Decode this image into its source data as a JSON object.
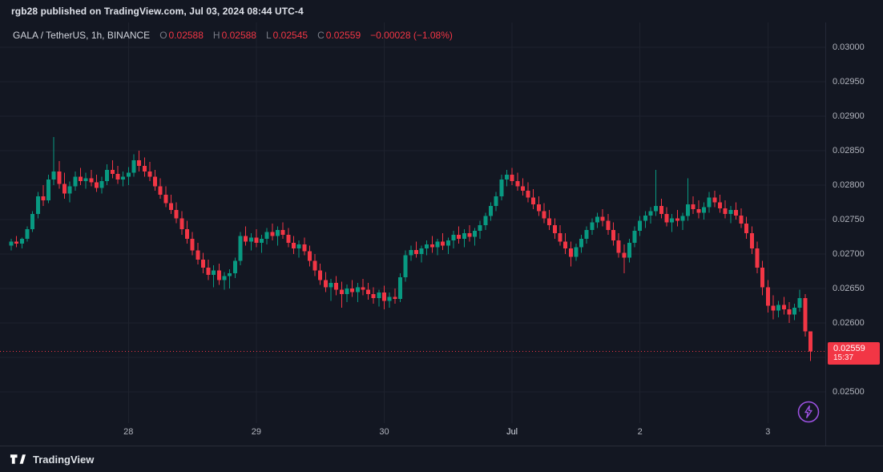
{
  "attribution": "rgb28 published on TradingView.com, Jul 03, 2024 08:44 UTC-4",
  "legend": {
    "symbol": "GALA / TetherUS, 1h, BINANCE",
    "o_label": "O",
    "o_value": "0.02588",
    "h_label": "H",
    "h_value": "0.02588",
    "l_label": "L",
    "l_value": "0.02545",
    "c_label": "C",
    "c_value": "0.02559",
    "change": "−0.00028 (−1.08%)"
  },
  "price_axis": {
    "last_price": "0.02559",
    "countdown": "15:37"
  },
  "footer": {
    "brand": "TradingView"
  },
  "colors": {
    "background": "#131722",
    "up": "#089981",
    "down": "#f23645",
    "grid": "#1e222d",
    "axis_text": "#b2b5be",
    "badge": "#f23645",
    "accent_purple": "#9b51e0"
  },
  "chart_data": {
    "type": "candlestick",
    "title": "GALA / TetherUS, 1h, BINANCE",
    "interval": "1h",
    "exchange": "BINANCE",
    "last": {
      "open": 0.02588,
      "high": 0.02588,
      "low": 0.02545,
      "close": 0.02559,
      "change": -0.00028,
      "change_pct": -1.08
    },
    "y_range": [
      0.025,
      0.03
    ],
    "y_ticks": [
      0.03,
      0.0295,
      0.029,
      0.0285,
      0.028,
      0.0275,
      0.027,
      0.0265,
      0.026,
      0.0255,
      0.025
    ],
    "x_labels": [
      {
        "label": "28",
        "index": 22,
        "major": false
      },
      {
        "label": "29",
        "index": 46,
        "major": false
      },
      {
        "label": "30",
        "index": 70,
        "major": false
      },
      {
        "label": "Jul",
        "index": 94,
        "major": true
      },
      {
        "label": "2",
        "index": 118,
        "major": false
      },
      {
        "label": "3",
        "index": 142,
        "major": false
      }
    ],
    "candles": [
      [
        0.02712,
        0.02722,
        0.02705,
        0.02718
      ],
      [
        0.02718,
        0.02726,
        0.0271,
        0.02715
      ],
      [
        0.02715,
        0.02724,
        0.02708,
        0.02722
      ],
      [
        0.02722,
        0.0274,
        0.02718,
        0.02736
      ],
      [
        0.02736,
        0.02762,
        0.02732,
        0.02758
      ],
      [
        0.02758,
        0.0279,
        0.02752,
        0.02784
      ],
      [
        0.02784,
        0.028,
        0.0277,
        0.02778
      ],
      [
        0.02778,
        0.02815,
        0.02774,
        0.02808
      ],
      [
        0.02808,
        0.0287,
        0.028,
        0.0282
      ],
      [
        0.0282,
        0.02835,
        0.02795,
        0.02802
      ],
      [
        0.02802,
        0.02818,
        0.0278,
        0.02788
      ],
      [
        0.02788,
        0.02805,
        0.02775,
        0.02798
      ],
      [
        0.02798,
        0.0282,
        0.02792,
        0.02812
      ],
      [
        0.02812,
        0.02825,
        0.028,
        0.02806
      ],
      [
        0.02806,
        0.02818,
        0.02795,
        0.0281
      ],
      [
        0.0281,
        0.02822,
        0.02798,
        0.02804
      ],
      [
        0.02804,
        0.02815,
        0.0279,
        0.02796
      ],
      [
        0.02796,
        0.02812,
        0.02788,
        0.02806
      ],
      [
        0.02806,
        0.0283,
        0.028,
        0.02822
      ],
      [
        0.02822,
        0.02836,
        0.0281,
        0.02816
      ],
      [
        0.02816,
        0.02828,
        0.02802,
        0.02808
      ],
      [
        0.02808,
        0.0282,
        0.02798,
        0.02812
      ],
      [
        0.02812,
        0.02826,
        0.028,
        0.02818
      ],
      [
        0.02818,
        0.02845,
        0.02812,
        0.02836
      ],
      [
        0.02836,
        0.0285,
        0.0282,
        0.02828
      ],
      [
        0.02828,
        0.0284,
        0.02812,
        0.0282
      ],
      [
        0.0282,
        0.02834,
        0.02806,
        0.02812
      ],
      [
        0.02812,
        0.02822,
        0.02792,
        0.02798
      ],
      [
        0.02798,
        0.0281,
        0.0278,
        0.02786
      ],
      [
        0.02786,
        0.02798,
        0.02768,
        0.02774
      ],
      [
        0.02774,
        0.02786,
        0.02758,
        0.02764
      ],
      [
        0.02764,
        0.02775,
        0.02745,
        0.02752
      ],
      [
        0.02752,
        0.02762,
        0.02728,
        0.02736
      ],
      [
        0.02736,
        0.02748,
        0.02715,
        0.02722
      ],
      [
        0.02722,
        0.02732,
        0.02698,
        0.02705
      ],
      [
        0.02705,
        0.02716,
        0.02685,
        0.02692
      ],
      [
        0.02692,
        0.02702,
        0.02672,
        0.0268
      ],
      [
        0.0268,
        0.02692,
        0.02662,
        0.0267
      ],
      [
        0.0267,
        0.02684,
        0.02652,
        0.02676
      ],
      [
        0.02676,
        0.02686,
        0.02655,
        0.02662
      ],
      [
        0.02662,
        0.02674,
        0.02648,
        0.02668
      ],
      [
        0.02668,
        0.02678,
        0.0265,
        0.02672
      ],
      [
        0.02672,
        0.02695,
        0.02665,
        0.0269
      ],
      [
        0.0269,
        0.02732,
        0.02684,
        0.02726
      ],
      [
        0.02726,
        0.0274,
        0.02712,
        0.02718
      ],
      [
        0.02718,
        0.0273,
        0.02705,
        0.02724
      ],
      [
        0.02724,
        0.02736,
        0.0271,
        0.02716
      ],
      [
        0.02716,
        0.02728,
        0.02702,
        0.02722
      ],
      [
        0.02722,
        0.02738,
        0.02714,
        0.02732
      ],
      [
        0.02732,
        0.02744,
        0.0272,
        0.02726
      ],
      [
        0.02726,
        0.0274,
        0.02712,
        0.02735
      ],
      [
        0.02735,
        0.02746,
        0.02722,
        0.02728
      ],
      [
        0.02728,
        0.02738,
        0.0271,
        0.02716
      ],
      [
        0.02716,
        0.02726,
        0.027,
        0.02708
      ],
      [
        0.02708,
        0.0272,
        0.02695,
        0.02714
      ],
      [
        0.02714,
        0.02724,
        0.02698,
        0.02704
      ],
      [
        0.02704,
        0.02712,
        0.02682,
        0.0269
      ],
      [
        0.0269,
        0.027,
        0.02668,
        0.02676
      ],
      [
        0.02676,
        0.02686,
        0.02655,
        0.02662
      ],
      [
        0.02662,
        0.02674,
        0.02645,
        0.02652
      ],
      [
        0.02652,
        0.02664,
        0.02632,
        0.02658
      ],
      [
        0.02658,
        0.02668,
        0.0264,
        0.02648
      ],
      [
        0.02648,
        0.0266,
        0.02622,
        0.02642
      ],
      [
        0.02642,
        0.02656,
        0.0263,
        0.0265
      ],
      [
        0.0265,
        0.02662,
        0.02638,
        0.02645
      ],
      [
        0.02645,
        0.02658,
        0.0263,
        0.02652
      ],
      [
        0.02652,
        0.02664,
        0.0264,
        0.02648
      ],
      [
        0.02648,
        0.02658,
        0.02634,
        0.02642
      ],
      [
        0.02642,
        0.02652,
        0.02628,
        0.02636
      ],
      [
        0.02636,
        0.02648,
        0.02624,
        0.02644
      ],
      [
        0.02644,
        0.02654,
        0.0262,
        0.02632
      ],
      [
        0.02632,
        0.02644,
        0.02622,
        0.02638
      ],
      [
        0.02638,
        0.0265,
        0.02628,
        0.02635
      ],
      [
        0.02635,
        0.02672,
        0.0263,
        0.02666
      ],
      [
        0.02666,
        0.02705,
        0.0266,
        0.02698
      ],
      [
        0.02698,
        0.02712,
        0.0269,
        0.02706
      ],
      [
        0.02706,
        0.02718,
        0.02695,
        0.027
      ],
      [
        0.027,
        0.02712,
        0.02688,
        0.02708
      ],
      [
        0.02708,
        0.0272,
        0.02698,
        0.02714
      ],
      [
        0.02714,
        0.02726,
        0.02702,
        0.0271
      ],
      [
        0.0271,
        0.02722,
        0.02698,
        0.02718
      ],
      [
        0.02718,
        0.0273,
        0.02706,
        0.02712
      ],
      [
        0.02712,
        0.02724,
        0.027,
        0.0272
      ],
      [
        0.0272,
        0.02734,
        0.02708,
        0.02728
      ],
      [
        0.02728,
        0.0274,
        0.02715,
        0.02722
      ],
      [
        0.02722,
        0.02736,
        0.0271,
        0.0273
      ],
      [
        0.0273,
        0.02742,
        0.02718,
        0.02725
      ],
      [
        0.02725,
        0.02738,
        0.02712,
        0.02734
      ],
      [
        0.02734,
        0.02748,
        0.02722,
        0.02742
      ],
      [
        0.02742,
        0.0276,
        0.02735,
        0.02755
      ],
      [
        0.02755,
        0.02775,
        0.02748,
        0.0277
      ],
      [
        0.0277,
        0.0279,
        0.02762,
        0.02784
      ],
      [
        0.02784,
        0.02815,
        0.02778,
        0.02808
      ],
      [
        0.02808,
        0.02822,
        0.02798,
        0.02815
      ],
      [
        0.02815,
        0.02825,
        0.028,
        0.02806
      ],
      [
        0.02806,
        0.02818,
        0.02792,
        0.02798
      ],
      [
        0.02798,
        0.0281,
        0.02785,
        0.02792
      ],
      [
        0.02792,
        0.02804,
        0.02775,
        0.02782
      ],
      [
        0.02782,
        0.02794,
        0.02765,
        0.02772
      ],
      [
        0.02772,
        0.02784,
        0.02755,
        0.02762
      ],
      [
        0.02762,
        0.02774,
        0.02745,
        0.02752
      ],
      [
        0.02752,
        0.02764,
        0.02735,
        0.02742
      ],
      [
        0.02742,
        0.02752,
        0.02722,
        0.0273
      ],
      [
        0.0273,
        0.02742,
        0.02712,
        0.02718
      ],
      [
        0.02718,
        0.0273,
        0.027,
        0.02708
      ],
      [
        0.02708,
        0.02718,
        0.02682,
        0.02696
      ],
      [
        0.02696,
        0.02715,
        0.0269,
        0.0271
      ],
      [
        0.0271,
        0.02728,
        0.02702,
        0.02722
      ],
      [
        0.02722,
        0.0274,
        0.02715,
        0.02735
      ],
      [
        0.02735,
        0.02752,
        0.02728,
        0.02746
      ],
      [
        0.02746,
        0.0276,
        0.02738,
        0.02754
      ],
      [
        0.02754,
        0.02765,
        0.0274,
        0.02748
      ],
      [
        0.02748,
        0.02758,
        0.02728,
        0.02735
      ],
      [
        0.02735,
        0.02746,
        0.02712,
        0.0272
      ],
      [
        0.0272,
        0.0273,
        0.02695,
        0.02702
      ],
      [
        0.02702,
        0.02714,
        0.02672,
        0.02695
      ],
      [
        0.02695,
        0.02722,
        0.02688,
        0.02716
      ],
      [
        0.02716,
        0.0274,
        0.0271,
        0.02734
      ],
      [
        0.02734,
        0.02755,
        0.02726,
        0.02748
      ],
      [
        0.02748,
        0.02762,
        0.02738,
        0.02756
      ],
      [
        0.02756,
        0.02768,
        0.02744,
        0.02762
      ],
      [
        0.02762,
        0.02822,
        0.02755,
        0.0277
      ],
      [
        0.0277,
        0.0278,
        0.02752,
        0.02758
      ],
      [
        0.02758,
        0.02768,
        0.0274,
        0.02746
      ],
      [
        0.02746,
        0.02758,
        0.02732,
        0.02752
      ],
      [
        0.02752,
        0.02764,
        0.0274,
        0.02748
      ],
      [
        0.02748,
        0.0276,
        0.02735,
        0.02755
      ],
      [
        0.02755,
        0.0281,
        0.02748,
        0.02772
      ],
      [
        0.02772,
        0.02784,
        0.02758,
        0.02765
      ],
      [
        0.02765,
        0.02778,
        0.02752,
        0.0276
      ],
      [
        0.0276,
        0.02775,
        0.0275,
        0.02768
      ],
      [
        0.02768,
        0.0279,
        0.0276,
        0.02782
      ],
      [
        0.02782,
        0.02792,
        0.02768,
        0.02775
      ],
      [
        0.02775,
        0.02786,
        0.0276,
        0.02766
      ],
      [
        0.02766,
        0.02778,
        0.02752,
        0.02758
      ],
      [
        0.02758,
        0.0277,
        0.02745,
        0.02764
      ],
      [
        0.02764,
        0.02775,
        0.0275,
        0.02756
      ],
      [
        0.02756,
        0.02766,
        0.02738,
        0.02744
      ],
      [
        0.02744,
        0.02754,
        0.02722,
        0.0273
      ],
      [
        0.0273,
        0.0274,
        0.027,
        0.02708
      ],
      [
        0.02708,
        0.02718,
        0.02672,
        0.0268
      ],
      [
        0.0268,
        0.0269,
        0.0264,
        0.02652
      ],
      [
        0.02652,
        0.02662,
        0.02615,
        0.02625
      ],
      [
        0.02625,
        0.0264,
        0.02605,
        0.02618
      ],
      [
        0.02618,
        0.02632,
        0.02608,
        0.02626
      ],
      [
        0.02626,
        0.02638,
        0.02612,
        0.0262
      ],
      [
        0.0262,
        0.0263,
        0.026,
        0.02612
      ],
      [
        0.02612,
        0.02628,
        0.02604,
        0.02622
      ],
      [
        0.02622,
        0.02648,
        0.02616,
        0.02636
      ],
      [
        0.02636,
        0.02642,
        0.0258,
        0.02588
      ],
      [
        0.02588,
        0.02588,
        0.02545,
        0.02559
      ]
    ]
  }
}
